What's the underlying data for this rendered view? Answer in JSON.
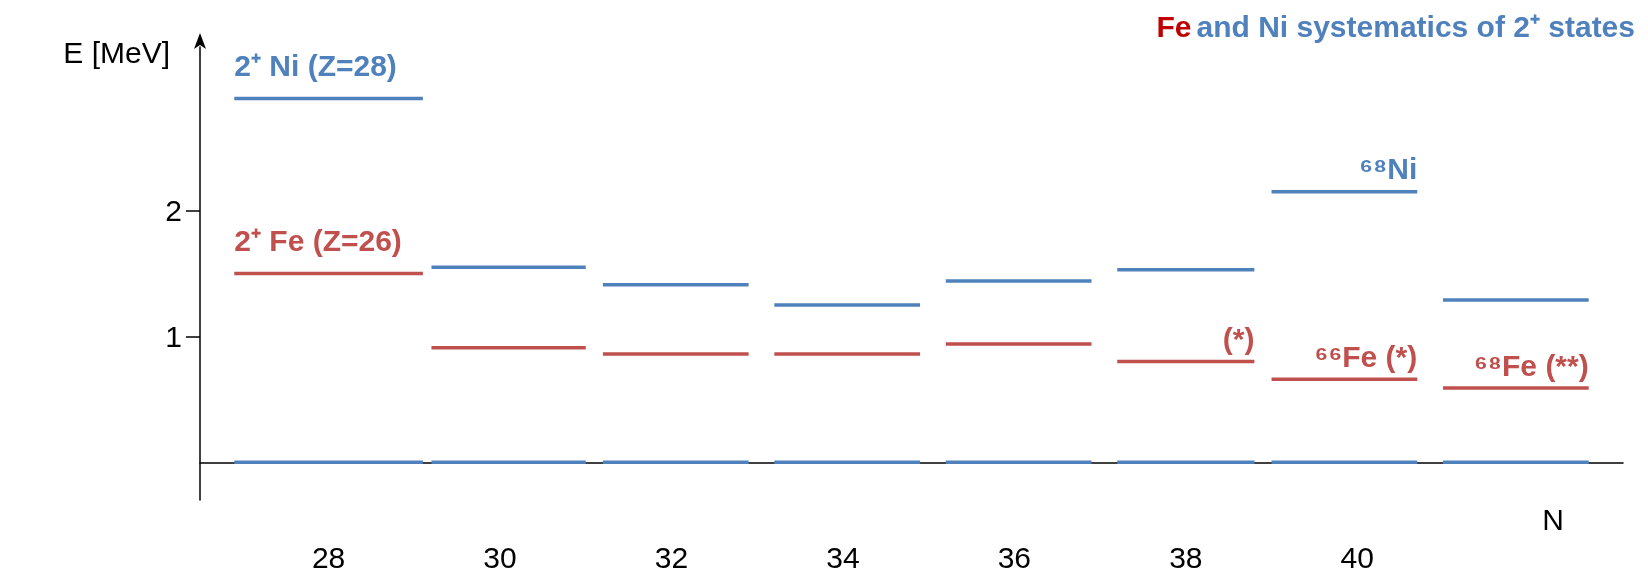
{
  "chart_data": {
    "type": "line",
    "title": "Fe and Ni systematics of 2⁺ states",
    "ylabel": "E [MeV]",
    "xlabel": "N",
    "x": [
      26.9,
      29.1,
      29.15,
      29.2,
      31.0,
      31.1,
      31.2,
      32.9,
      33.05,
      33.2,
      34.9,
      35.05,
      35.2,
      36.9,
      37.05,
      37.2,
      38.8,
      38.9,
      39.0,
      40.7,
      40.85,
      41.0,
      42.7
    ],
    "series": [
      {
        "name": "2⁺ Ni (Z=28)",
        "color": "#4f81bd",
        "values": [
          2.89,
          2.89,
          null,
          1.55,
          1.55,
          null,
          1.41,
          1.41,
          null,
          1.25,
          1.25,
          null,
          1.44,
          1.44,
          null,
          1.53,
          1.53,
          null,
          2.15,
          2.15,
          null,
          1.29,
          1.29
        ]
      },
      {
        "name": "2⁺ Fe (Z=26)",
        "color": "#c0504d",
        "values": [
          1.5,
          1.5,
          null,
          0.91,
          0.91,
          null,
          0.86,
          0.86,
          null,
          0.86,
          0.86,
          null,
          0.94,
          0.94,
          null,
          0.8,
          0.8,
          null,
          0.66,
          0.66,
          null,
          0.59,
          0.59
        ]
      },
      {
        "color": "#4f81bd",
        "values": [
          0,
          0,
          null,
          0,
          0,
          null,
          0,
          0,
          null,
          0,
          0,
          null,
          0,
          0,
          null,
          0,
          0,
          null,
          0,
          0,
          null,
          0,
          0
        ]
      }
    ],
    "marker": "none",
    "line_style": "solid",
    "xlim": [
      26.5,
      43.1
    ],
    "xticks": [
      28,
      30,
      32,
      34,
      36,
      38,
      40
    ],
    "ylim": [
      -0.3,
      3.3
    ],
    "yticks": [
      1,
      2
    ],
    "grid": false,
    "legend": false,
    "annotations": [
      {
        "text": "⁶⁸Ni",
        "x": 40.7,
        "y": 2.15
      },
      {
        "text": "(*)",
        "x": 38.8,
        "y": 0.8
      },
      {
        "text": "⁶⁶Fe (*)",
        "x": 40.7,
        "y": 0.66
      },
      {
        "text": "⁶⁸Fe (**)",
        "x": 42.7,
        "y": 0.59
      }
    ]
  }
}
